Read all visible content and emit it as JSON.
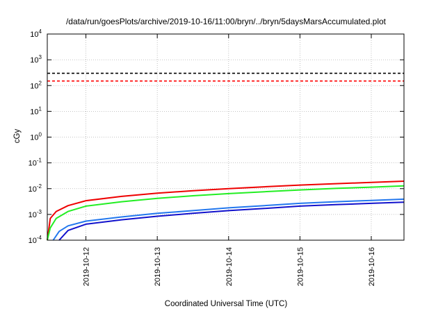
{
  "chart_data": {
    "type": "line",
    "title": "/data/run/goesPlots/archive/2019-10-16/11:00/bryn/../bryn/5daysMarsAccumulated.plot",
    "xlabel": "Coordinated Universal Time (UTC)",
    "ylabel": "cGy",
    "x_range": [
      "2019-10-11T11:00",
      "2019-10-16T11:00"
    ],
    "x_ticks": [
      "2019-10-12",
      "2019-10-13",
      "2019-10-14",
      "2019-10-15",
      "2019-10-16"
    ],
    "y_scale": "log",
    "ylim": [
      0.0001,
      10000
    ],
    "y_ticks": [
      {
        "base": "10",
        "exp": "4",
        "value": 10000
      },
      {
        "base": "10",
        "exp": "3",
        "value": 1000
      },
      {
        "base": "10",
        "exp": "2",
        "value": 100
      },
      {
        "base": "10",
        "exp": "1",
        "value": 10
      },
      {
        "base": "10",
        "exp": "0",
        "value": 1
      },
      {
        "base": "10",
        "exp": "-1",
        "value": 0.1
      },
      {
        "base": "10",
        "exp": "-2",
        "value": 0.01
      },
      {
        "base": "10",
        "exp": "-3",
        "value": 0.001
      },
      {
        "base": "10",
        "exp": "-4",
        "value": 0.0001
      }
    ],
    "grid": true,
    "reference_lines": [
      {
        "value": 300,
        "color": "#000000",
        "style": "dashed"
      },
      {
        "value": 150,
        "color": "#ff0000",
        "style": "dashed"
      }
    ],
    "series": [
      {
        "color": "#ee0000",
        "x": [
          "2019-10-11T11:00",
          "2019-10-11T12:00",
          "2019-10-11T14:00",
          "2019-10-11T18:00",
          "2019-10-12T00:00",
          "2019-10-12T12:00",
          "2019-10-13T00:00",
          "2019-10-13T12:00",
          "2019-10-14T00:00",
          "2019-10-14T12:00",
          "2019-10-15T00:00",
          "2019-10-15T12:00",
          "2019-10-16T00:00",
          "2019-10-16T11:00"
        ],
        "y": [
          0.0001,
          0.0007,
          0.0013,
          0.0022,
          0.0034,
          0.005,
          0.0067,
          0.0083,
          0.01,
          0.0118,
          0.0138,
          0.0156,
          0.0174,
          0.0195
        ]
      },
      {
        "color": "#22ee22",
        "x": [
          "2019-10-11T11:00",
          "2019-10-11T12:00",
          "2019-10-11T14:00",
          "2019-10-11T18:00",
          "2019-10-12T00:00",
          "2019-10-12T12:00",
          "2019-10-13T00:00",
          "2019-10-13T12:00",
          "2019-10-14T00:00",
          "2019-10-14T12:00",
          "2019-10-15T00:00",
          "2019-10-15T12:00",
          "2019-10-16T00:00",
          "2019-10-16T11:00"
        ],
        "y": [
          0.0001,
          0.0003,
          0.0007,
          0.0013,
          0.0021,
          0.0031,
          0.0042,
          0.0053,
          0.0064,
          0.0076,
          0.0089,
          0.0102,
          0.0114,
          0.0128
        ]
      },
      {
        "color": "#2277ee",
        "x": [
          "2019-10-11T13:00",
          "2019-10-11T15:00",
          "2019-10-11T18:00",
          "2019-10-12T00:00",
          "2019-10-12T12:00",
          "2019-10-13T00:00",
          "2019-10-13T12:00",
          "2019-10-14T00:00",
          "2019-10-14T12:00",
          "2019-10-15T00:00",
          "2019-10-15T12:00",
          "2019-10-16T00:00",
          "2019-10-16T11:00"
        ],
        "y": [
          0.0001,
          0.00022,
          0.00036,
          0.00055,
          0.0008,
          0.0011,
          0.0014,
          0.0018,
          0.0022,
          0.0027,
          0.0031,
          0.0035,
          0.0039
        ]
      },
      {
        "color": "#1111cc",
        "x": [
          "2019-10-11T15:00",
          "2019-10-11T18:00",
          "2019-10-12T00:00",
          "2019-10-12T12:00",
          "2019-10-13T00:00",
          "2019-10-13T12:00",
          "2019-10-14T00:00",
          "2019-10-14T12:00",
          "2019-10-15T00:00",
          "2019-10-15T12:00",
          "2019-10-16T00:00",
          "2019-10-16T11:00"
        ],
        "y": [
          0.0001,
          0.00024,
          0.00042,
          0.00062,
          0.00085,
          0.0011,
          0.0014,
          0.0017,
          0.0021,
          0.0024,
          0.0027,
          0.003
        ]
      }
    ]
  }
}
